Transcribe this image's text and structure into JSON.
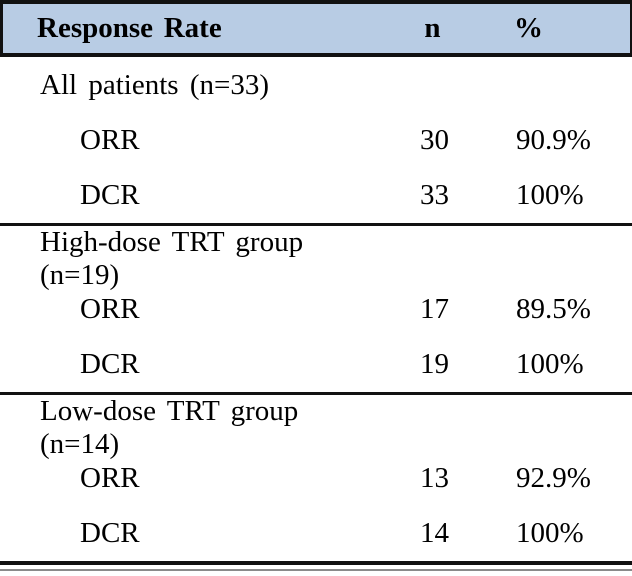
{
  "table": {
    "header": {
      "col1": "Response Rate",
      "col2": "n",
      "col3": "%"
    },
    "sections": [
      {
        "label": "All patients (n=33)",
        "rows": [
          {
            "name": "ORR",
            "n": "30",
            "pct": "90.9%"
          },
          {
            "name": "DCR",
            "n": "33",
            "pct": "100%"
          }
        ]
      },
      {
        "label": "High-dose TRT group (n=19)",
        "rows": [
          {
            "name": "ORR",
            "n": "17",
            "pct": "89.5%"
          },
          {
            "name": "DCR",
            "n": "19",
            "pct": "100%"
          }
        ]
      },
      {
        "label": "Low-dose TRT group (n=14)",
        "rows": [
          {
            "name": "ORR",
            "n": "13",
            "pct": "92.9%"
          },
          {
            "name": "DCR",
            "n": "14",
            "pct": "100%"
          }
        ]
      }
    ],
    "colors": {
      "header_bg": "#b8cce4",
      "rule": "#111111",
      "thin_line": "#8a8a8a"
    }
  }
}
